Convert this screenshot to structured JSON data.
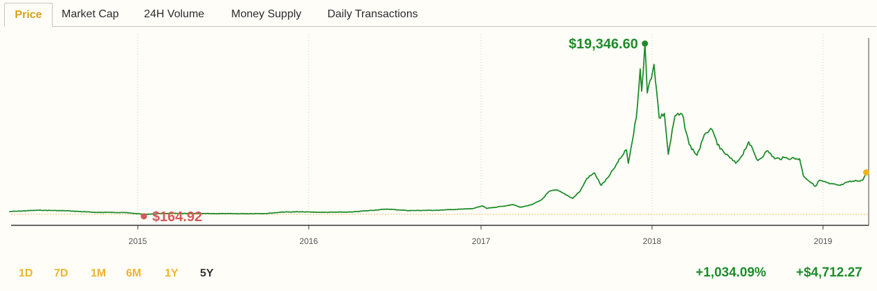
{
  "tabs": [
    {
      "label": "Price",
      "active": true
    },
    {
      "label": "Market Cap",
      "active": false
    },
    {
      "label": "24H Volume",
      "active": false
    },
    {
      "label": "Money Supply",
      "active": false
    },
    {
      "label": "Daily Transactions",
      "active": false
    }
  ],
  "ranges": [
    {
      "label": "1D",
      "active": false
    },
    {
      "label": "7D",
      "active": false
    },
    {
      "label": "1M",
      "active": false
    },
    {
      "label": "6M",
      "active": false
    },
    {
      "label": "1Y",
      "active": false
    },
    {
      "label": "5Y",
      "active": true
    }
  ],
  "stats": {
    "percent_change": "+1,034.09%",
    "value_change": "+$4,712.27"
  },
  "colors": {
    "line": "#1e8c2a",
    "high": "#1e8c2a",
    "low": "#d45a5a",
    "current": "#f0b41e",
    "active_tab": "#d9a01b",
    "range_inactive": "#ecb52d"
  },
  "chart_data": {
    "type": "line",
    "x_ticks": [
      "2015",
      "2016",
      "2017",
      "2018",
      "2019"
    ],
    "annotations": {
      "high": {
        "label": "$19,346.60",
        "date": "2017-12-17",
        "value": 19346.6
      },
      "low": {
        "label": "$164.92",
        "date": "2015-01-14",
        "value": 164.92
      }
    },
    "baseline_value": 164.92,
    "ylim": [
      0,
      19346.6
    ],
    "grid": "vertical-dotted",
    "series": [
      {
        "points": [
          [
            "2014-04-01",
            470
          ],
          [
            "2014-06-01",
            620
          ],
          [
            "2014-08-01",
            560
          ],
          [
            "2014-10-01",
            380
          ],
          [
            "2014-12-01",
            370
          ],
          [
            "2015-01-14",
            165
          ],
          [
            "2015-03-01",
            260
          ],
          [
            "2015-06-01",
            240
          ],
          [
            "2015-08-01",
            230
          ],
          [
            "2015-10-01",
            250
          ],
          [
            "2015-11-05",
            420
          ],
          [
            "2015-12-15",
            440
          ],
          [
            "2016-02-01",
            380
          ],
          [
            "2016-04-01",
            420
          ],
          [
            "2016-06-15",
            750
          ],
          [
            "2016-08-01",
            580
          ],
          [
            "2016-10-01",
            620
          ],
          [
            "2016-12-15",
            800
          ],
          [
            "2017-01-05",
            1100
          ],
          [
            "2017-01-15",
            820
          ],
          [
            "2017-02-15",
            1050
          ],
          [
            "2017-03-10",
            1250
          ],
          [
            "2017-03-25",
            950
          ],
          [
            "2017-04-20",
            1250
          ],
          [
            "2017-05-10",
            1800
          ],
          [
            "2017-05-25",
            2700
          ],
          [
            "2017-06-10",
            2900
          ],
          [
            "2017-06-25",
            2550
          ],
          [
            "2017-07-15",
            1950
          ],
          [
            "2017-08-01",
            2800
          ],
          [
            "2017-08-15",
            4200
          ],
          [
            "2017-09-01",
            4800
          ],
          [
            "2017-09-15",
            3400
          ],
          [
            "2017-10-01",
            4400
          ],
          [
            "2017-10-20",
            6000
          ],
          [
            "2017-11-08",
            7400
          ],
          [
            "2017-11-12",
            5900
          ],
          [
            "2017-11-29",
            11000
          ],
          [
            "2017-12-07",
            16500
          ],
          [
            "2017-12-10",
            14000
          ],
          [
            "2017-12-17",
            19346.6
          ],
          [
            "2017-12-22",
            13800
          ],
          [
            "2018-01-06",
            17000
          ],
          [
            "2018-01-17",
            11000
          ],
          [
            "2018-01-28",
            11500
          ],
          [
            "2018-02-06",
            6900
          ],
          [
            "2018-02-20",
            11200
          ],
          [
            "2018-03-05",
            11400
          ],
          [
            "2018-03-20",
            8000
          ],
          [
            "2018-04-06",
            6800
          ],
          [
            "2018-04-25",
            9300
          ],
          [
            "2018-05-05",
            9800
          ],
          [
            "2018-05-25",
            7500
          ],
          [
            "2018-06-28",
            5900
          ],
          [
            "2018-07-10",
            6700
          ],
          [
            "2018-07-25",
            8300
          ],
          [
            "2018-08-14",
            6200
          ],
          [
            "2018-09-05",
            7300
          ],
          [
            "2018-09-20",
            6400
          ],
          [
            "2018-10-15",
            6500
          ],
          [
            "2018-11-12",
            6400
          ],
          [
            "2018-11-20",
            4500
          ],
          [
            "2018-12-15",
            3300
          ],
          [
            "2018-12-24",
            4000
          ],
          [
            "2019-01-15",
            3600
          ],
          [
            "2019-02-07",
            3400
          ],
          [
            "2019-02-25",
            3800
          ],
          [
            "2019-03-25",
            4000
          ],
          [
            "2019-04-02",
            4877
          ]
        ]
      }
    ]
  }
}
